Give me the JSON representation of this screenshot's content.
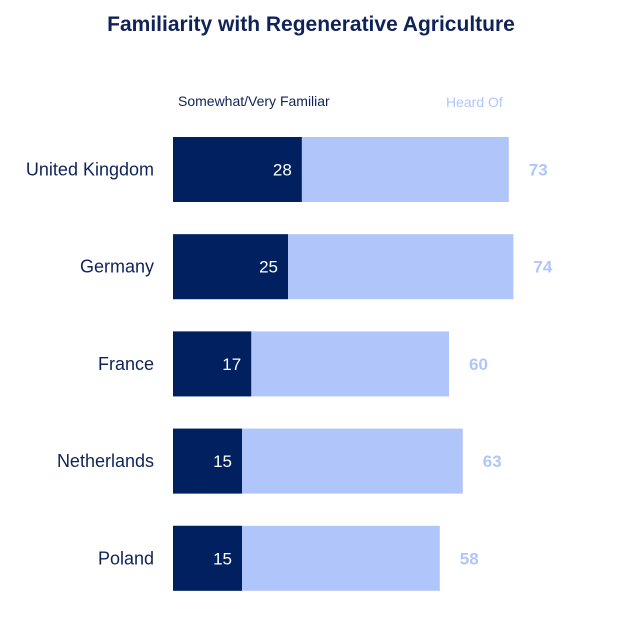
{
  "chart_data": {
    "type": "bar",
    "orientation": "horizontal",
    "title": "Familiarity with Regenerative Agriculture",
    "categories": [
      "United Kingdom",
      "Germany",
      "France",
      "Netherlands",
      "Poland"
    ],
    "series": [
      {
        "name": "Somewhat/Very Familiar",
        "values": [
          28,
          25,
          17,
          15,
          15
        ],
        "color": "#002060"
      },
      {
        "name": "Heard Of",
        "values": [
          73,
          74,
          60,
          63,
          58
        ],
        "color": "#b0c6fa"
      }
    ],
    "overlapping": true,
    "legend": "top",
    "grid": false,
    "xlim": [
      0,
      100
    ]
  }
}
